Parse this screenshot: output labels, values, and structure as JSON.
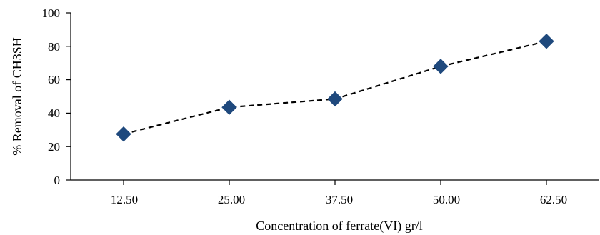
{
  "chart_data": {
    "type": "line",
    "categories": [
      "12.50",
      "25.00",
      "37.50",
      "50.00",
      "62.50"
    ],
    "values": [
      27.5,
      43.5,
      48.5,
      68,
      83
    ],
    "xlabel": "Concentration of ferrate(VI) gr/l",
    "ylabel": "% Removal of CH3SH",
    "ylim": [
      0,
      100
    ],
    "yticks": [
      "0",
      "20",
      "40",
      "60",
      "80",
      "100"
    ],
    "grid": false,
    "legend": "none",
    "marker": "diamond",
    "line_style": "dashed",
    "colors": {
      "marker": "#1f497d",
      "line": "#000000",
      "axis": "#000000"
    }
  }
}
